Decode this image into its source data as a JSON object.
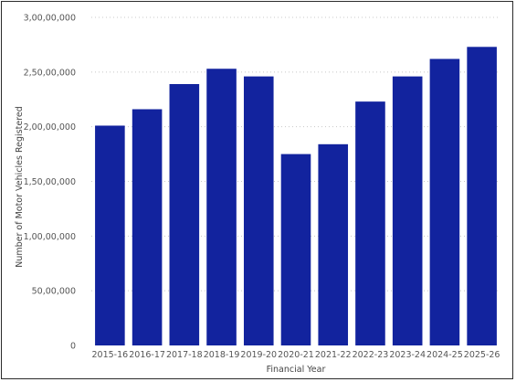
{
  "chart_data": {
    "type": "bar",
    "title": "",
    "xlabel": "Financial Year",
    "ylabel": "Number of Motor Vehicles Registered",
    "categories": [
      "2015-16",
      "2016-17",
      "2017-18",
      "2018-19",
      "2019-20",
      "2020-21",
      "2021-22",
      "2022-23",
      "2023-24",
      "2024-25",
      "2025-26"
    ],
    "values": [
      20100000,
      21600000,
      23900000,
      25300000,
      24600000,
      17500000,
      18400000,
      22300000,
      24600000,
      26200000,
      27300000
    ],
    "ylim": [
      0,
      30000000
    ],
    "yticks": [
      0,
      5000000,
      10000000,
      15000000,
      20000000,
      25000000,
      30000000
    ],
    "ytick_labels": [
      "0",
      "50,00,000",
      "1,00,00,000",
      "1,50,00,000",
      "2,00,00,000",
      "2,50,00,000",
      "3,00,00,000"
    ],
    "grid": true,
    "bar_color": "#12239e"
  }
}
